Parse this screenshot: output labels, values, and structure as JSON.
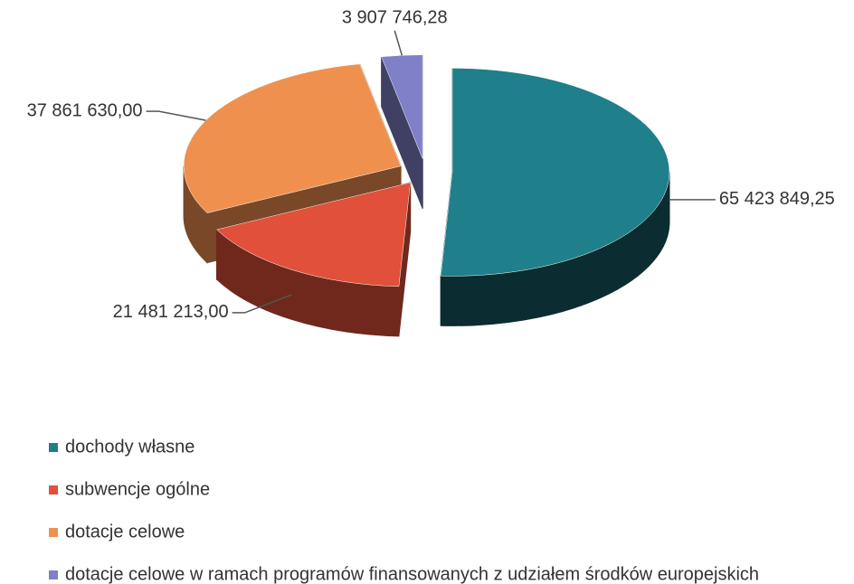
{
  "chart_data": {
    "type": "pie3d",
    "categories": [
      "dochody własne",
      "subwencje ogólne",
      "dotacje celowe",
      "dotacje celowe w ramach programów finansowanych z udziałem środków europejskich"
    ],
    "values": [
      65423849.25,
      21481213.0,
      37861630.0,
      3907746.28
    ],
    "value_labels": [
      "65 423 849,25",
      "21 481 213,00",
      "37 861 630,00",
      "3 907 746,28"
    ],
    "colors": [
      "#1f7f8a",
      "#e0503a",
      "#f0904f",
      "#7f80c8"
    ],
    "legend": "bottom-left"
  }
}
